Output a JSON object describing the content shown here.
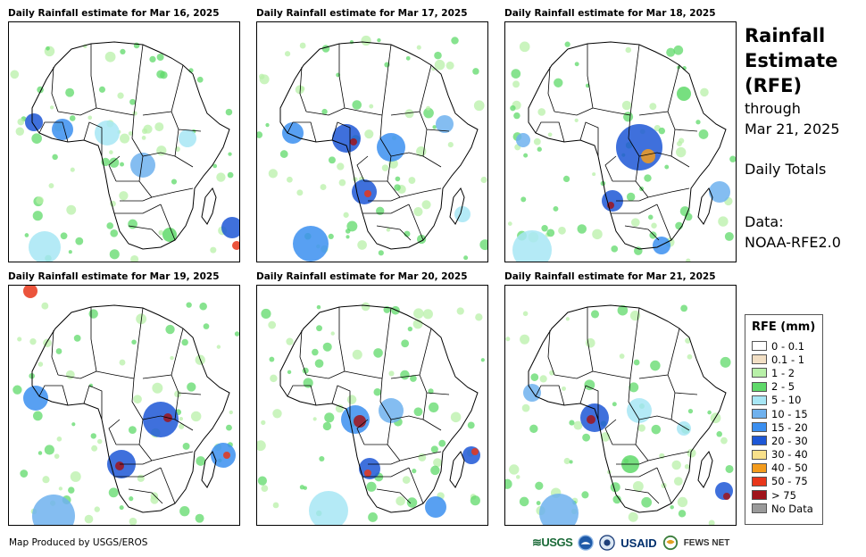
{
  "panels": [
    {
      "title": "Daily Rainfall estimate for Mar 16, 2025"
    },
    {
      "title": "Daily Rainfall estimate for Mar 17, 2025"
    },
    {
      "title": "Daily Rainfall estimate for Mar 18, 2025"
    },
    {
      "title": "Daily Rainfall estimate for Mar 19, 2025"
    },
    {
      "title": "Daily Rainfall estimate for Mar 20, 2025"
    },
    {
      "title": "Daily Rainfall estimate for Mar 21, 2025"
    }
  ],
  "side": {
    "line1": "Rainfall",
    "line2": "Estimate",
    "line3": "(RFE)",
    "line4": "through",
    "line5": "Mar 21, 2025",
    "period": "Daily Totals",
    "data_label": "Data:",
    "data_source": "NOAA-RFE2.0"
  },
  "legend": {
    "title": "RFE (mm)",
    "items": [
      {
        "label": "0 - 0.1",
        "color": "#ffffff"
      },
      {
        "label": "0.1 - 1",
        "color": "#f2dfc4"
      },
      {
        "label": "1 - 2",
        "color": "#b8f0a8"
      },
      {
        "label": "2 - 5",
        "color": "#5fd96a"
      },
      {
        "label": "5 - 10",
        "color": "#a7e6f5"
      },
      {
        "label": "10 - 15",
        "color": "#6fb1ee"
      },
      {
        "label": "15 - 20",
        "color": "#3b8ff0"
      },
      {
        "label": "20 - 30",
        "color": "#1d57d6"
      },
      {
        "label": "30 - 40",
        "color": "#f8e08a"
      },
      {
        "label": "40 - 50",
        "color": "#f39b1c"
      },
      {
        "label": "50 - 75",
        "color": "#e8361a"
      },
      {
        "label": "> 75",
        "color": "#a0141b"
      },
      {
        "label": "No Data",
        "color": "#9a9a9a"
      }
    ]
  },
  "footer": {
    "credit": "Map Produced by USGS/EROS",
    "logo_usgs": "≋USGS",
    "logo_usaid": "USAID",
    "logo_fews": "FEWS NET"
  }
}
